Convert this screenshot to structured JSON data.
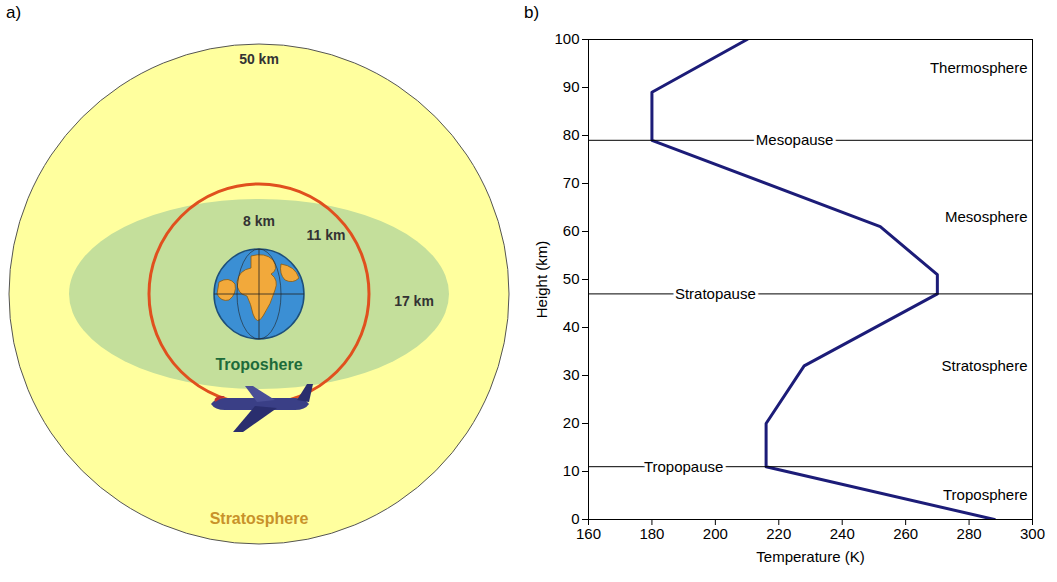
{
  "panel_letters": [
    "a)",
    "b)"
  ],
  "diagram": {
    "outer_label": "Stratosphere",
    "inner_label": "Troposhere",
    "height_labels": {
      "stratosphere_top": "50 km",
      "troposphere_poles": "8 km",
      "flight_level": "11 km",
      "troposphere_equator": "17 km"
    }
  },
  "chart_data": {
    "type": "line",
    "x_label": "Temperature (K)",
    "y_label": "Height (km)",
    "x": [
      288,
      216,
      216,
      228,
      270,
      270,
      252,
      180,
      180,
      210
    ],
    "values": [
      0,
      11,
      20,
      32,
      47,
      51,
      61,
      79,
      89,
      100
    ],
    "color": "#1c1c78",
    "xlim": [
      160,
      300
    ],
    "xticks": [
      160,
      180,
      200,
      220,
      240,
      260,
      280,
      300
    ],
    "ylim": [
      0,
      100
    ],
    "yticks": [
      0,
      10,
      20,
      30,
      40,
      50,
      60,
      70,
      80,
      90,
      100
    ],
    "grid": false,
    "boundaries": [
      {
        "label": "Tropopause",
        "height": 11,
        "x": 190
      },
      {
        "label": "Stratopause",
        "height": 47,
        "x": 200
      },
      {
        "label": "Mesopause",
        "height": 79,
        "x": 225
      }
    ],
    "layer_labels": [
      {
        "label": "Troposphere",
        "height": 5
      },
      {
        "label": "Stratosphere",
        "height": 32
      },
      {
        "label": "Mesosphere",
        "height": 63
      },
      {
        "label": "Thermosphere",
        "height": 94
      }
    ]
  }
}
